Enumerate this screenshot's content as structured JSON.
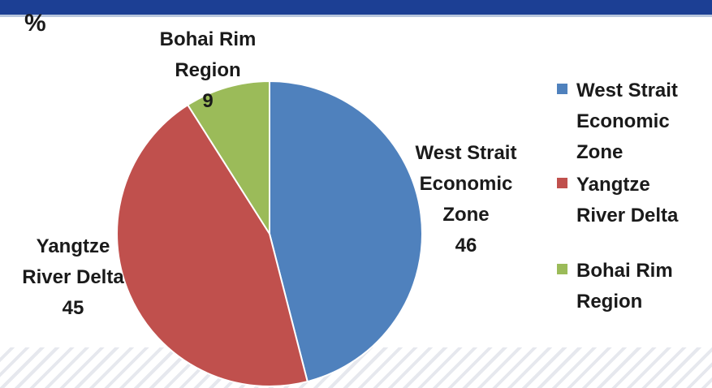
{
  "unit_label": "%",
  "chart_data": {
    "type": "pie",
    "title": "",
    "slices": [
      {
        "label_lines": [
          "West Strait",
          "Economic",
          "Zone"
        ],
        "value": 46,
        "color": "#4f81bd"
      },
      {
        "label_lines": [
          "Yangtze",
          "River Delta"
        ],
        "value": 45,
        "color": "#c0504d"
      },
      {
        "label_lines": [
          "Bohai Rim",
          "Region"
        ],
        "value": 9,
        "color": "#9bbb59"
      }
    ],
    "legend": {
      "position": "right",
      "entries": [
        {
          "lines": [
            "West Strait",
            "Economic",
            "Zone"
          ],
          "color": "#4f81bd"
        },
        {
          "lines": [
            "Yangtze",
            "River Delta"
          ],
          "color": "#c0504d"
        },
        {
          "lines": [
            "Bohai Rim",
            "Region"
          ],
          "color": "#9bbb59"
        }
      ]
    }
  }
}
